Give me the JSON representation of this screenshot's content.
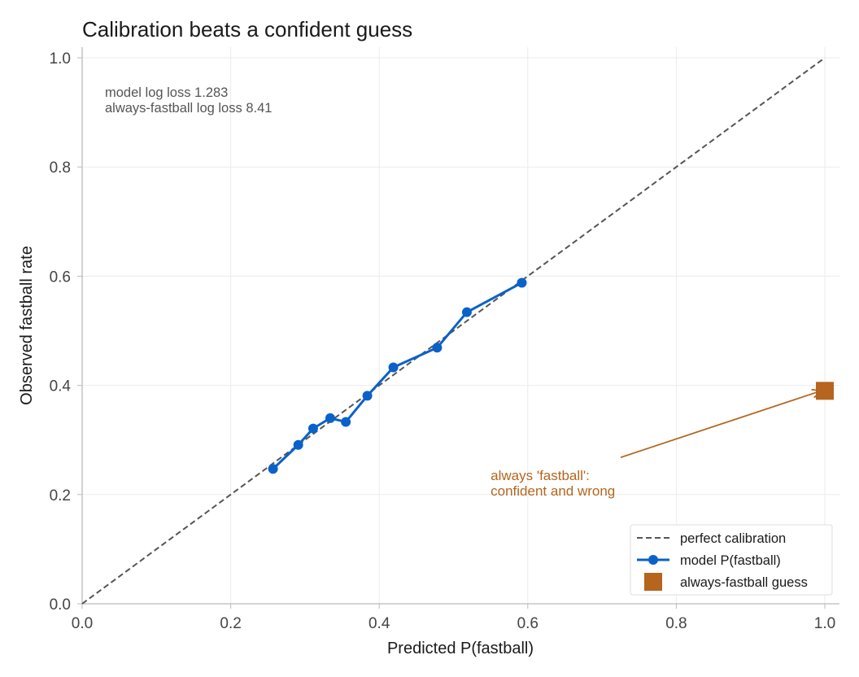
{
  "chart_data": {
    "type": "line",
    "title": "Calibration beats a confident guess",
    "xlabel": "Predicted P(fastball)",
    "ylabel": "Observed fastball rate",
    "xlim": [
      0.0,
      1.0
    ],
    "ylim": [
      0.0,
      1.0
    ],
    "xticks": [
      "0.0",
      "0.2",
      "0.4",
      "0.6",
      "0.8",
      "1.0"
    ],
    "yticks": [
      "0.0",
      "0.2",
      "0.4",
      "0.6",
      "0.8",
      "1.0"
    ],
    "grid": true,
    "legend_position": "bottom-right",
    "series": [
      {
        "name": "perfect calibration",
        "style": "dashed",
        "color": "#555555",
        "x": [
          0.0,
          1.0
        ],
        "y": [
          0.0,
          1.0
        ]
      },
      {
        "name": "model P(fastball)",
        "style": "line-markers",
        "color": "#0a62c9",
        "x": [
          0.257,
          0.291,
          0.311,
          0.334,
          0.355,
          0.384,
          0.419,
          0.478,
          0.518,
          0.592
        ],
        "y": [
          0.247,
          0.291,
          0.321,
          0.34,
          0.333,
          0.381,
          0.433,
          0.469,
          0.534,
          0.588
        ]
      },
      {
        "name": "always-fastball guess",
        "style": "square-marker",
        "color": "#b5651d",
        "x": [
          1.0
        ],
        "y": [
          0.39
        ]
      }
    ],
    "stats_text": [
      "model log loss 1.283",
      "always-fastball log loss 8.41"
    ],
    "annotation": {
      "lines": [
        "always 'fastball':",
        "confident and wrong"
      ],
      "text_at": [
        0.55,
        0.2
      ],
      "arrow_from": [
        0.725,
        0.268
      ],
      "arrow_to": [
        0.995,
        0.39
      ]
    }
  }
}
